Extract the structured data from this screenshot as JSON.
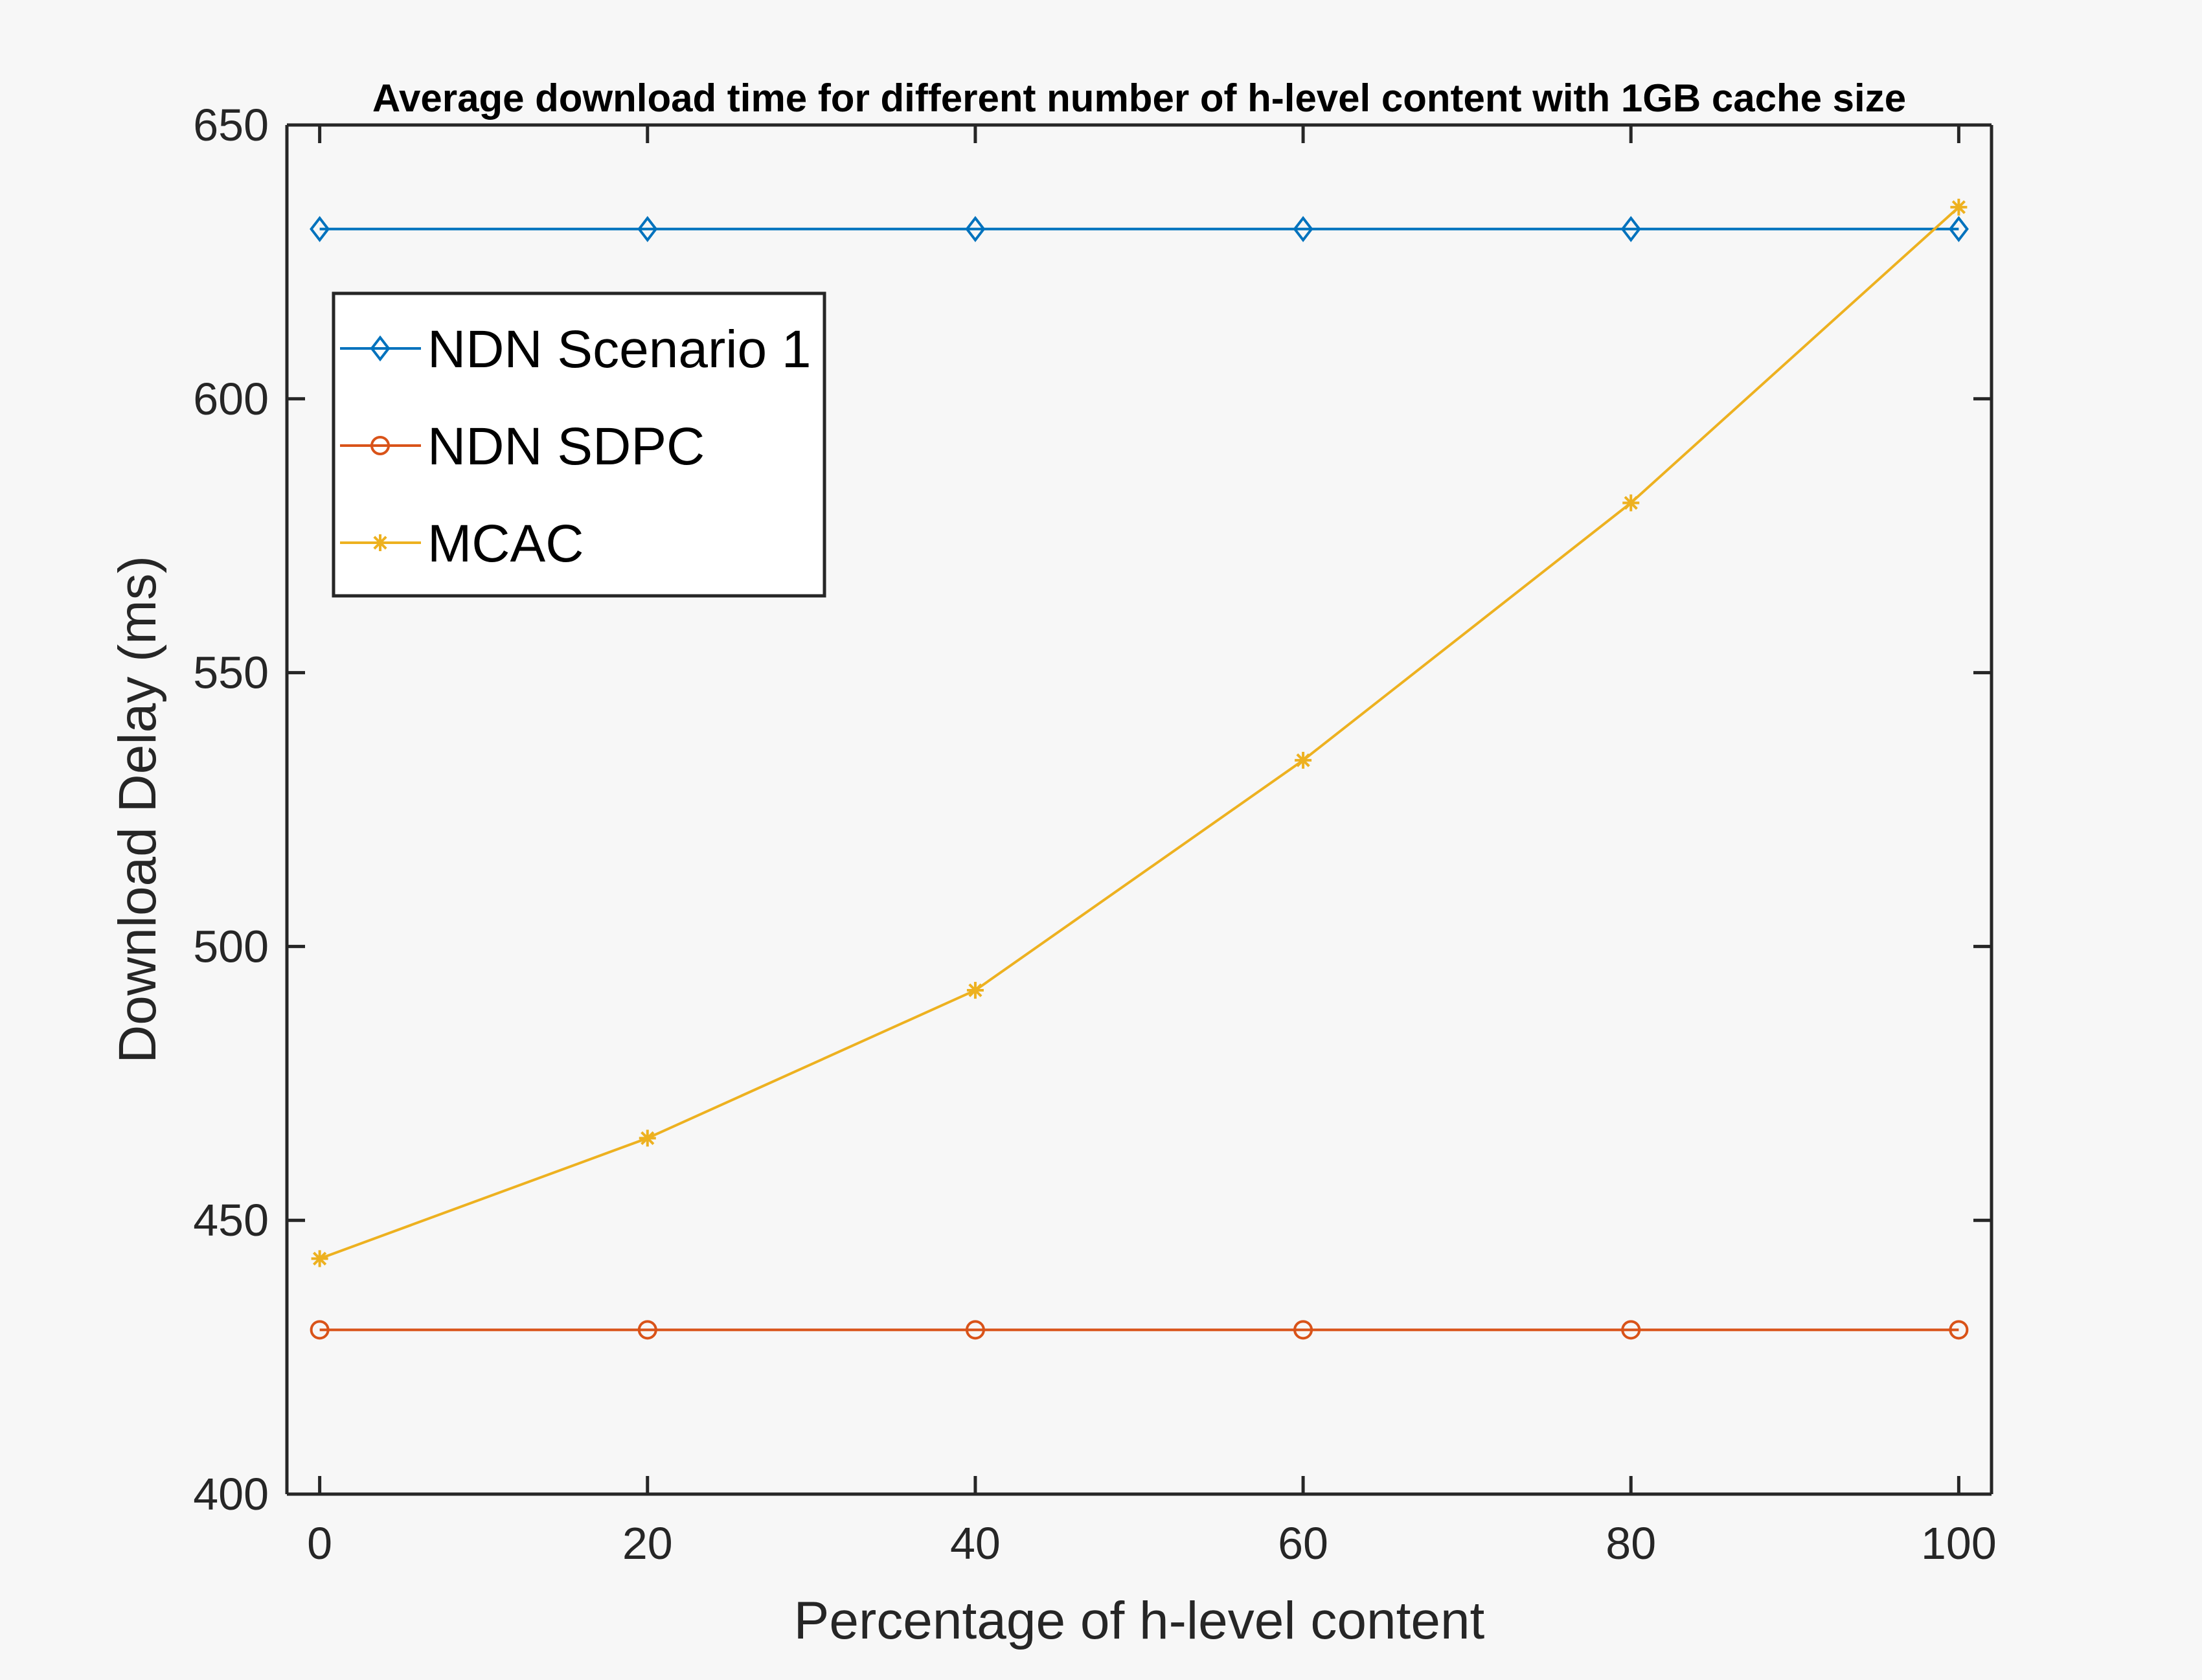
{
  "chart_data": {
    "type": "line",
    "title": "Average download time for different number of h-level content with 1GB cache size",
    "xlabel": "Percentage of h-level content",
    "ylabel": "Download Delay (ms)",
    "x": [
      0,
      20,
      40,
      60,
      80,
      100
    ],
    "xlim": [
      -2,
      102
    ],
    "ylim": [
      400,
      650
    ],
    "xticks": [
      "0",
      "20",
      "40",
      "60",
      "80",
      "100"
    ],
    "yticks": [
      "400",
      "450",
      "500",
      "550",
      "600",
      "650"
    ],
    "grid": false,
    "legend_position": "top-left",
    "series": [
      {
        "name": "NDN Scenario 1",
        "values": [
          631,
          631,
          631,
          631,
          631,
          631
        ],
        "color": "#0072BD",
        "marker": "diamond"
      },
      {
        "name": "NDN SDPC",
        "values": [
          430,
          430,
          430,
          430,
          430,
          430
        ],
        "color": "#D95319",
        "marker": "circle"
      },
      {
        "name": "MCAC",
        "values": [
          443,
          465,
          492,
          534,
          581,
          635
        ],
        "color": "#EDB120",
        "marker": "asterisk"
      }
    ]
  }
}
